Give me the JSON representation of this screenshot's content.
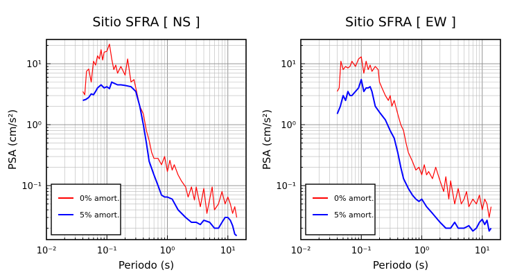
{
  "chart_data": [
    {
      "type": "line",
      "title": "Sitio SFRA [ NS ]",
      "xlabel": "Periodo (s)",
      "ylabel": "PSA (cm/s²)",
      "xscale": "log",
      "yscale": "log",
      "xlim": [
        0.01,
        20
      ],
      "ylim": [
        0.013,
        25
      ],
      "x_tick_labels": [
        "10⁻²",
        "10⁻¹",
        "10⁰",
        "10¹"
      ],
      "y_tick_labels": [
        "10⁻¹",
        "10⁰",
        "10¹"
      ],
      "grid": true,
      "legend_position": "bottom-left",
      "series": [
        {
          "name": "0% amort.",
          "color": "#ff0000",
          "x": [
            0.04,
            0.043,
            0.046,
            0.05,
            0.055,
            0.06,
            0.065,
            0.07,
            0.075,
            0.08,
            0.085,
            0.09,
            0.1,
            0.11,
            0.12,
            0.13,
            0.14,
            0.15,
            0.17,
            0.2,
            0.22,
            0.25,
            0.28,
            0.3,
            0.35,
            0.4,
            0.45,
            0.5,
            0.55,
            0.6,
            0.7,
            0.8,
            0.9,
            1.0,
            1.1,
            1.2,
            1.3,
            1.5,
            1.7,
            2.0,
            2.2,
            2.5,
            2.8,
            3.0,
            3.5,
            4.0,
            4.5,
            5.0,
            5.5,
            6.0,
            7.0,
            8.0,
            9.0,
            10.0,
            11.0,
            12.0,
            13.0,
            14.0
          ],
          "values": [
            3.5,
            3.1,
            7.5,
            8.2,
            5.0,
            11.0,
            9.5,
            13.5,
            12.0,
            17.0,
            11.5,
            15.5,
            16.0,
            21.0,
            12.0,
            8.0,
            9.5,
            7.0,
            9.0,
            6.5,
            12.0,
            5.0,
            5.5,
            4.0,
            2.0,
            1.5,
            0.8,
            0.55,
            0.35,
            0.28,
            0.28,
            0.22,
            0.3,
            0.17,
            0.26,
            0.18,
            0.22,
            0.15,
            0.12,
            0.095,
            0.065,
            0.095,
            0.058,
            0.095,
            0.045,
            0.09,
            0.035,
            0.06,
            0.095,
            0.04,
            0.05,
            0.08,
            0.05,
            0.065,
            0.05,
            0.035,
            0.045,
            0.03
          ]
        },
        {
          "name": "5% amort.",
          "color": "#0000ff",
          "x": [
            0.04,
            0.045,
            0.05,
            0.055,
            0.06,
            0.065,
            0.07,
            0.08,
            0.09,
            0.1,
            0.11,
            0.12,
            0.13,
            0.15,
            0.17,
            0.2,
            0.25,
            0.3,
            0.35,
            0.4,
            0.45,
            0.5,
            0.6,
            0.7,
            0.8,
            0.9,
            1.0,
            1.2,
            1.5,
            2.0,
            2.5,
            3.0,
            3.5,
            4.0,
            5.0,
            6.0,
            7.0,
            8.0,
            9.0,
            10.0,
            11.0,
            12.0,
            13.0,
            14.0
          ],
          "values": [
            2.5,
            2.6,
            2.8,
            3.2,
            3.1,
            3.5,
            4.0,
            4.5,
            4.0,
            4.2,
            3.9,
            5.0,
            4.8,
            4.5,
            4.5,
            4.4,
            4.2,
            3.5,
            2.0,
            1.0,
            0.5,
            0.25,
            0.15,
            0.1,
            0.07,
            0.065,
            0.065,
            0.06,
            0.04,
            0.03,
            0.025,
            0.025,
            0.023,
            0.027,
            0.025,
            0.02,
            0.02,
            0.025,
            0.03,
            0.03,
            0.027,
            0.022,
            0.016,
            0.015
          ]
        }
      ]
    },
    {
      "type": "line",
      "title": "Sitio SFRA [ EW ]",
      "xlabel": "Periodo (s)",
      "ylabel": "PSA (cm/s²)",
      "xscale": "log",
      "yscale": "log",
      "xlim": [
        0.01,
        20
      ],
      "ylim": [
        0.013,
        25
      ],
      "x_tick_labels": [
        "10⁻²",
        "10⁻¹",
        "10⁰",
        "10¹"
      ],
      "y_tick_labels": [
        "10⁻¹",
        "10⁰",
        "10¹"
      ],
      "grid": true,
      "legend_position": "bottom-left",
      "series": [
        {
          "name": "0% amort.",
          "color": "#ff0000",
          "x": [
            0.04,
            0.043,
            0.046,
            0.05,
            0.055,
            0.06,
            0.065,
            0.07,
            0.08,
            0.09,
            0.1,
            0.11,
            0.12,
            0.13,
            0.14,
            0.15,
            0.17,
            0.19,
            0.2,
            0.22,
            0.25,
            0.28,
            0.3,
            0.32,
            0.35,
            0.4,
            0.45,
            0.5,
            0.55,
            0.6,
            0.7,
            0.8,
            0.9,
            1.0,
            1.1,
            1.2,
            1.3,
            1.5,
            1.7,
            2.0,
            2.3,
            2.5,
            2.8,
            3.0,
            3.5,
            4.0,
            4.5,
            5.0,
            5.5,
            6.0,
            7.0,
            8.0,
            9.0,
            10.0,
            11.0,
            12.0,
            13.0,
            14.0
          ],
          "values": [
            3.5,
            4.0,
            11.0,
            8.0,
            9.0,
            8.5,
            9.0,
            11.0,
            9.0,
            12.0,
            13.0,
            7.0,
            11.0,
            8.0,
            9.5,
            7.5,
            9.0,
            8.0,
            5.0,
            4.0,
            3.0,
            2.5,
            3.0,
            2.0,
            2.5,
            1.5,
            1.0,
            0.8,
            0.5,
            0.35,
            0.25,
            0.18,
            0.2,
            0.15,
            0.22,
            0.15,
            0.17,
            0.13,
            0.2,
            0.12,
            0.08,
            0.14,
            0.06,
            0.12,
            0.05,
            0.09,
            0.05,
            0.06,
            0.08,
            0.045,
            0.06,
            0.05,
            0.07,
            0.04,
            0.06,
            0.05,
            0.03,
            0.045
          ]
        },
        {
          "name": "5% amort.",
          "color": "#0000ff",
          "x": [
            0.04,
            0.045,
            0.05,
            0.055,
            0.06,
            0.065,
            0.07,
            0.08,
            0.09,
            0.1,
            0.11,
            0.12,
            0.13,
            0.14,
            0.15,
            0.17,
            0.2,
            0.25,
            0.3,
            0.35,
            0.4,
            0.45,
            0.5,
            0.6,
            0.7,
            0.8,
            0.9,
            1.0,
            1.2,
            1.5,
            2.0,
            2.5,
            3.0,
            3.5,
            4.0,
            5.0,
            6.0,
            7.0,
            8.0,
            9.0,
            10.0,
            11.0,
            12.0,
            13.0,
            14.0
          ],
          "values": [
            1.5,
            2.0,
            3.0,
            2.5,
            3.5,
            3.0,
            3.0,
            3.5,
            4.0,
            5.5,
            3.5,
            4.0,
            4.0,
            4.2,
            3.5,
            2.0,
            1.6,
            1.2,
            0.8,
            0.6,
            0.35,
            0.2,
            0.13,
            0.09,
            0.07,
            0.06,
            0.055,
            0.06,
            0.045,
            0.035,
            0.025,
            0.02,
            0.02,
            0.025,
            0.02,
            0.02,
            0.022,
            0.018,
            0.02,
            0.025,
            0.028,
            0.023,
            0.027,
            0.018,
            0.02
          ]
        }
      ]
    }
  ]
}
